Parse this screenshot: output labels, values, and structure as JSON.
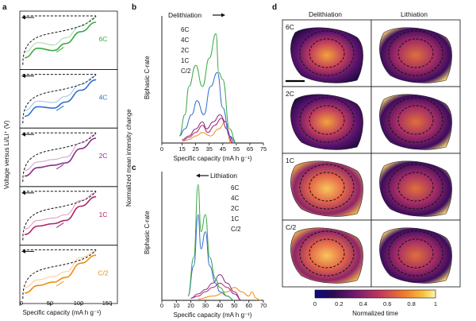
{
  "panels": {
    "a": {
      "letter": "a",
      "ylabel": "Voltage versus Li/Li⁺ (V)",
      "xlabel": "Specific capacity (mA h g⁻¹)",
      "xticks": [
        "0",
        "50",
        "100",
        "150"
      ],
      "rates": [
        {
          "label": "6C",
          "color": "#3aa845"
        },
        {
          "label": "4C",
          "color": "#2f6fd0"
        },
        {
          "label": "2C",
          "color": "#8a2e8a"
        },
        {
          "label": "1C",
          "color": "#b0226a"
        },
        {
          "label": "C/2",
          "color": "#f08c10"
        }
      ]
    },
    "b": {
      "letter": "b",
      "title": "Delithiation",
      "ylabel": "Biphasic C-rate",
      "xticks": [
        "0",
        "15",
        "25",
        "35",
        "45",
        "55",
        "65",
        "75"
      ],
      "xlabel": "Specific capacity (mA h g⁻¹)"
    },
    "c": {
      "letter": "c",
      "title": "Lithiation",
      "ylabel": "Biphasic C-rate",
      "xticks": [
        "0",
        "10",
        "20",
        "30",
        "40",
        "50",
        "60",
        "70"
      ],
      "xlabel": "Specific capacity (mA h g⁻¹)"
    },
    "shared_ylabel": "Normalized mean intensity change",
    "legend": [
      {
        "label": "6C",
        "color": "#3aa845"
      },
      {
        "label": "4C",
        "color": "#2f6fd0"
      },
      {
        "label": "2C",
        "color": "#8a2e8a"
      },
      {
        "label": "1C",
        "color": "#b0226a"
      },
      {
        "label": "C/2",
        "color": "#f08c10"
      }
    ],
    "d": {
      "letter": "d",
      "col_titles": [
        "Delithiation",
        "Lithiation"
      ],
      "row_labels": [
        "6C",
        "2C",
        "1C",
        "C/2"
      ],
      "colorbar": {
        "ticks": [
          "0",
          "0.2",
          "0.4",
          "0.6",
          "0.8",
          "1"
        ],
        "label": "Normalized time"
      }
    }
  },
  "chart_data": [
    {
      "type": "line",
      "title": "",
      "xlabel": "Specific capacity (mA h g⁻¹)",
      "ylabel": "Voltage versus Li/Li⁺ (V)",
      "xlim": [
        0,
        160
      ],
      "series": [
        {
          "name": "6C",
          "x": [
            8,
            30,
            55,
            75,
            100,
            125
          ],
          "y": [
            0.15,
            0.35,
            0.3,
            0.45,
            0.7,
            0.9
          ]
        },
        {
          "name": "4C",
          "x": [
            8,
            30,
            55,
            75,
            100,
            125
          ],
          "y": [
            0.15,
            0.35,
            0.32,
            0.45,
            0.7,
            0.92
          ]
        },
        {
          "name": "2C",
          "x": [
            8,
            30,
            55,
            75,
            100,
            125
          ],
          "y": [
            0.12,
            0.3,
            0.35,
            0.4,
            0.7,
            0.92
          ]
        },
        {
          "name": "1C",
          "x": [
            8,
            30,
            55,
            75,
            100,
            125
          ],
          "y": [
            0.12,
            0.3,
            0.35,
            0.42,
            0.72,
            0.92
          ]
        },
        {
          "name": "C/2",
          "x": [
            8,
            30,
            55,
            75,
            100,
            125
          ],
          "y": [
            0.12,
            0.28,
            0.35,
            0.45,
            0.75,
            0.92
          ]
        }
      ]
    },
    {
      "type": "line",
      "title": "Delithiation",
      "xlabel": "Specific capacity (mA h g⁻¹)",
      "ylabel": "Biphasic C-rate",
      "xlim": [
        0,
        75
      ],
      "series": [
        {
          "name": "6C",
          "x": [
            13,
            17,
            20,
            25,
            30,
            35,
            40,
            42,
            45,
            50,
            55
          ],
          "y": [
            1,
            4,
            8,
            11,
            8,
            12,
            15.5,
            10,
            9,
            2,
            0
          ]
        },
        {
          "name": "4C",
          "x": [
            13,
            17,
            22,
            26,
            31,
            36,
            41,
            45,
            50,
            55
          ],
          "y": [
            1,
            2,
            4,
            6,
            4,
            8,
            10,
            5,
            1,
            0
          ]
        },
        {
          "name": "2C",
          "x": [
            15,
            20,
            25,
            30,
            33,
            38,
            43,
            47,
            50,
            53
          ],
          "y": [
            0.5,
            1,
            2,
            3,
            2,
            3,
            4,
            3,
            1,
            0
          ]
        },
        {
          "name": "1C",
          "x": [
            15,
            20,
            25,
            30,
            34,
            39,
            44,
            48,
            52
          ],
          "y": [
            0.3,
            0.8,
            1.5,
            2.5,
            1.5,
            2.5,
            3.5,
            2,
            0
          ]
        },
        {
          "name": "C/2",
          "x": [
            16,
            20,
            25,
            30,
            36,
            42,
            47,
            51
          ],
          "y": [
            0.3,
            0.5,
            1,
            1.5,
            1,
            2,
            3,
            0
          ]
        }
      ]
    },
    {
      "type": "line",
      "title": "Lithiation",
      "xlabel": "Specific capacity (mA h g⁻¹)",
      "ylabel": "Biphasic C-rate",
      "xlim": [
        0,
        70
      ],
      "series": [
        {
          "name": "6C",
          "x": [
            18,
            22,
            25,
            27,
            30,
            33,
            37,
            40,
            45,
            50
          ],
          "y": [
            1,
            10,
            27,
            16,
            20,
            10,
            5,
            3,
            1,
            0
          ]
        },
        {
          "name": "4C",
          "x": [
            18,
            22,
            25,
            27,
            30,
            33,
            37,
            40,
            45,
            50
          ],
          "y": [
            1,
            8,
            20,
            12,
            16,
            8,
            4,
            2,
            1,
            0
          ]
        },
        {
          "name": "2C",
          "x": [
            20,
            25,
            30,
            35,
            40,
            45,
            50,
            55
          ],
          "y": [
            0.5,
            1.5,
            2.5,
            4,
            6,
            4,
            2,
            0
          ]
        },
        {
          "name": "1C",
          "x": [
            20,
            25,
            30,
            35,
            40,
            45,
            50,
            55
          ],
          "y": [
            0.5,
            1,
            2,
            3,
            4,
            3,
            1.5,
            0
          ]
        },
        {
          "name": "C/2",
          "x": [
            25,
            35,
            45,
            50,
            55,
            60,
            62,
            65,
            68
          ],
          "y": [
            0.3,
            1,
            2,
            3,
            2,
            1,
            2,
            0.5,
            0
          ]
        }
      ]
    }
  ]
}
